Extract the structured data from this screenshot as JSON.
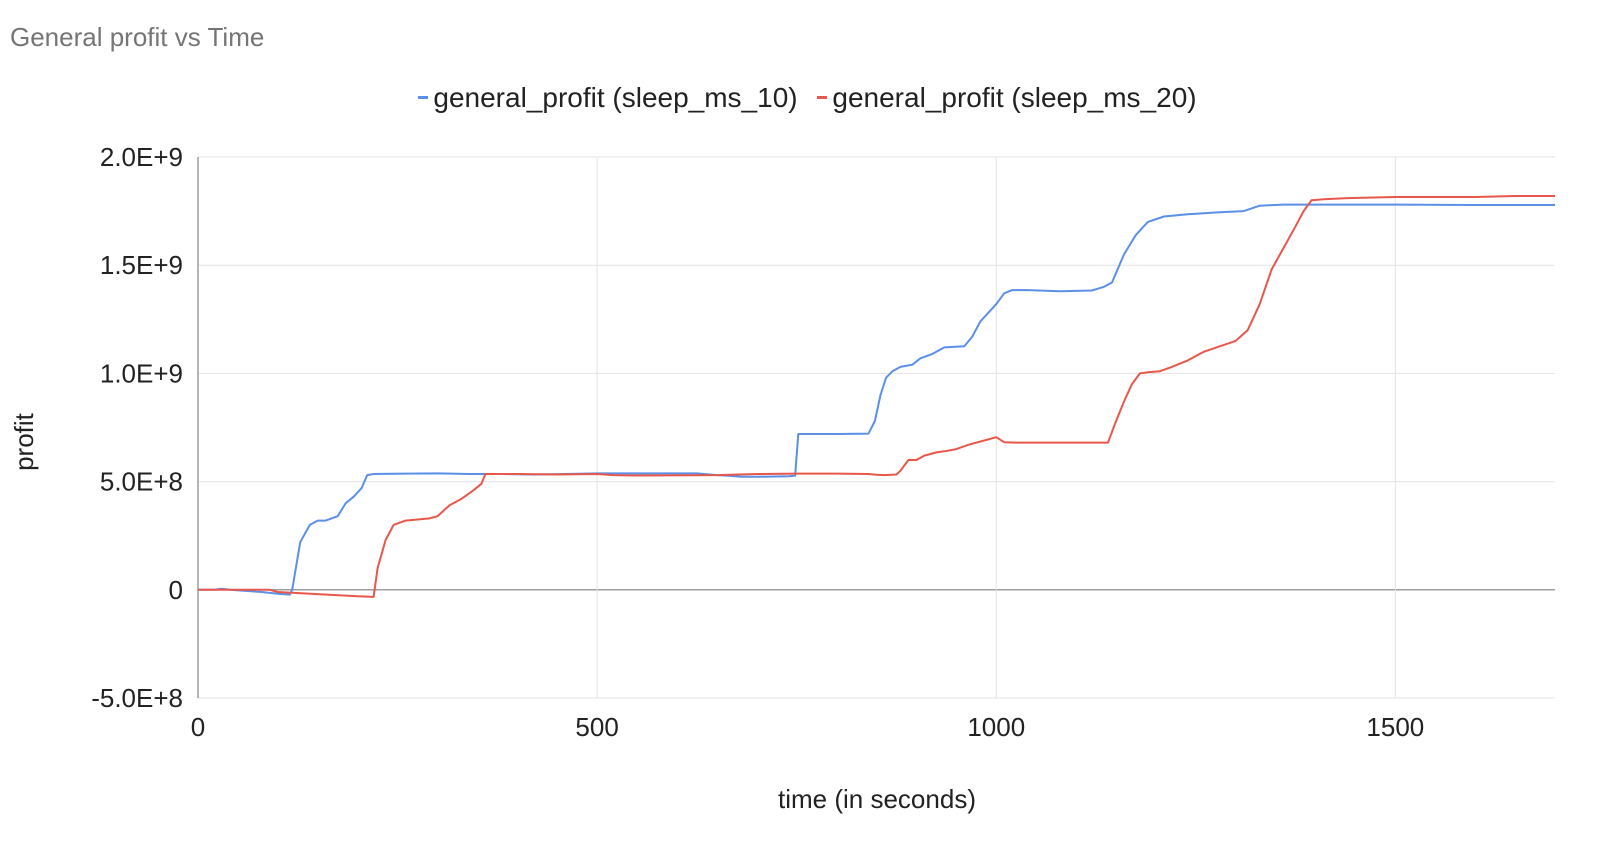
{
  "chart_data": {
    "type": "line",
    "title": "General profit vs Time",
    "xlabel": "time (in seconds)",
    "ylabel": "profit",
    "xlim": [
      0,
      1700
    ],
    "ylim": [
      -500000000,
      2000000000
    ],
    "x_ticks": [
      0,
      500,
      1000,
      1500
    ],
    "x_tick_labels": [
      "0",
      "500",
      "1000",
      "1500"
    ],
    "y_ticks": [
      -500000000,
      0,
      500000000,
      1000000000,
      1500000000,
      2000000000
    ],
    "y_tick_labels": [
      "-5.0E+8",
      "0",
      "5.0E+8",
      "1.0E+9",
      "1.5E+9",
      "2.0E+9"
    ],
    "grid": true,
    "legend_position": "top",
    "series": [
      {
        "name": "general_profit (sleep_ms_10)",
        "color": "#5b8fe8",
        "x": [
          0,
          20,
          30,
          40,
          60,
          80,
          100,
          115,
          118,
          128,
          140,
          150,
          160,
          175,
          185,
          195,
          205,
          212,
          220,
          260,
          300,
          340,
          380,
          420,
          460,
          500,
          550,
          600,
          625,
          650,
          665,
          680,
          700,
          740,
          748,
          752,
          770,
          800,
          840,
          848,
          855,
          862,
          870,
          880,
          895,
          905,
          920,
          935,
          960,
          970,
          980,
          1000,
          1010,
          1020,
          1040,
          1080,
          1120,
          1135,
          1145,
          1160,
          1175,
          1190,
          1210,
          1240,
          1280,
          1310,
          1330,
          1360,
          1400,
          1500,
          1600,
          1700
        ],
        "y": [
          0,
          0,
          5000000,
          0,
          -5000000,
          -10000000,
          -18000000,
          -22000000,
          0,
          220000000,
          300000000,
          320000000,
          320000000,
          340000000,
          400000000,
          430000000,
          470000000,
          530000000,
          535000000,
          537000000,
          538000000,
          535000000,
          535000000,
          533000000,
          535000000,
          538000000,
          538000000,
          538000000,
          538000000,
          530000000,
          527000000,
          522000000,
          522000000,
          525000000,
          527000000,
          720000000,
          720000000,
          720000000,
          722000000,
          780000000,
          900000000,
          980000000,
          1010000000,
          1030000000,
          1040000000,
          1070000000,
          1090000000,
          1120000000,
          1125000000,
          1170000000,
          1240000000,
          1320000000,
          1370000000,
          1385000000,
          1385000000,
          1380000000,
          1383000000,
          1400000000,
          1420000000,
          1550000000,
          1640000000,
          1700000000,
          1725000000,
          1735000000,
          1745000000,
          1750000000,
          1775000000,
          1780000000,
          1780000000,
          1780000000,
          1778000000,
          1778000000
        ]
      },
      {
        "name": "general_profit (sleep_ms_20)",
        "color": "#e8574a",
        "x": [
          0,
          40,
          90,
          100,
          150,
          200,
          220,
          225,
          235,
          245,
          260,
          275,
          290,
          300,
          315,
          330,
          345,
          355,
          360,
          400,
          450,
          500,
          520,
          550,
          650,
          700,
          750,
          800,
          840,
          850,
          860,
          875,
          880,
          890,
          900,
          910,
          925,
          935,
          950,
          965,
          975,
          985,
          1000,
          1010,
          1025,
          1060,
          1100,
          1140,
          1148,
          1160,
          1170,
          1180,
          1190,
          1205,
          1220,
          1240,
          1260,
          1280,
          1300,
          1315,
          1330,
          1345,
          1360,
          1375,
          1385,
          1395,
          1410,
          1440,
          1500,
          1600,
          1650,
          1700
        ],
        "y": [
          0,
          0,
          0,
          -10000000,
          -20000000,
          -30000000,
          -33000000,
          100000000,
          230000000,
          300000000,
          320000000,
          325000000,
          330000000,
          340000000,
          390000000,
          420000000,
          460000000,
          490000000,
          535000000,
          535000000,
          533000000,
          535000000,
          530000000,
          528000000,
          530000000,
          535000000,
          537000000,
          537000000,
          535000000,
          532000000,
          530000000,
          533000000,
          550000000,
          600000000,
          600000000,
          620000000,
          635000000,
          640000000,
          650000000,
          670000000,
          680000000,
          690000000,
          705000000,
          682000000,
          680000000,
          680000000,
          680000000,
          680000000,
          760000000,
          870000000,
          950000000,
          1000000000,
          1005000000,
          1010000000,
          1030000000,
          1060000000,
          1100000000,
          1125000000,
          1150000000,
          1200000000,
          1320000000,
          1480000000,
          1580000000,
          1680000000,
          1750000000,
          1800000000,
          1805000000,
          1810000000,
          1815000000,
          1815000000,
          1820000000,
          1820000000
        ]
      }
    ]
  }
}
